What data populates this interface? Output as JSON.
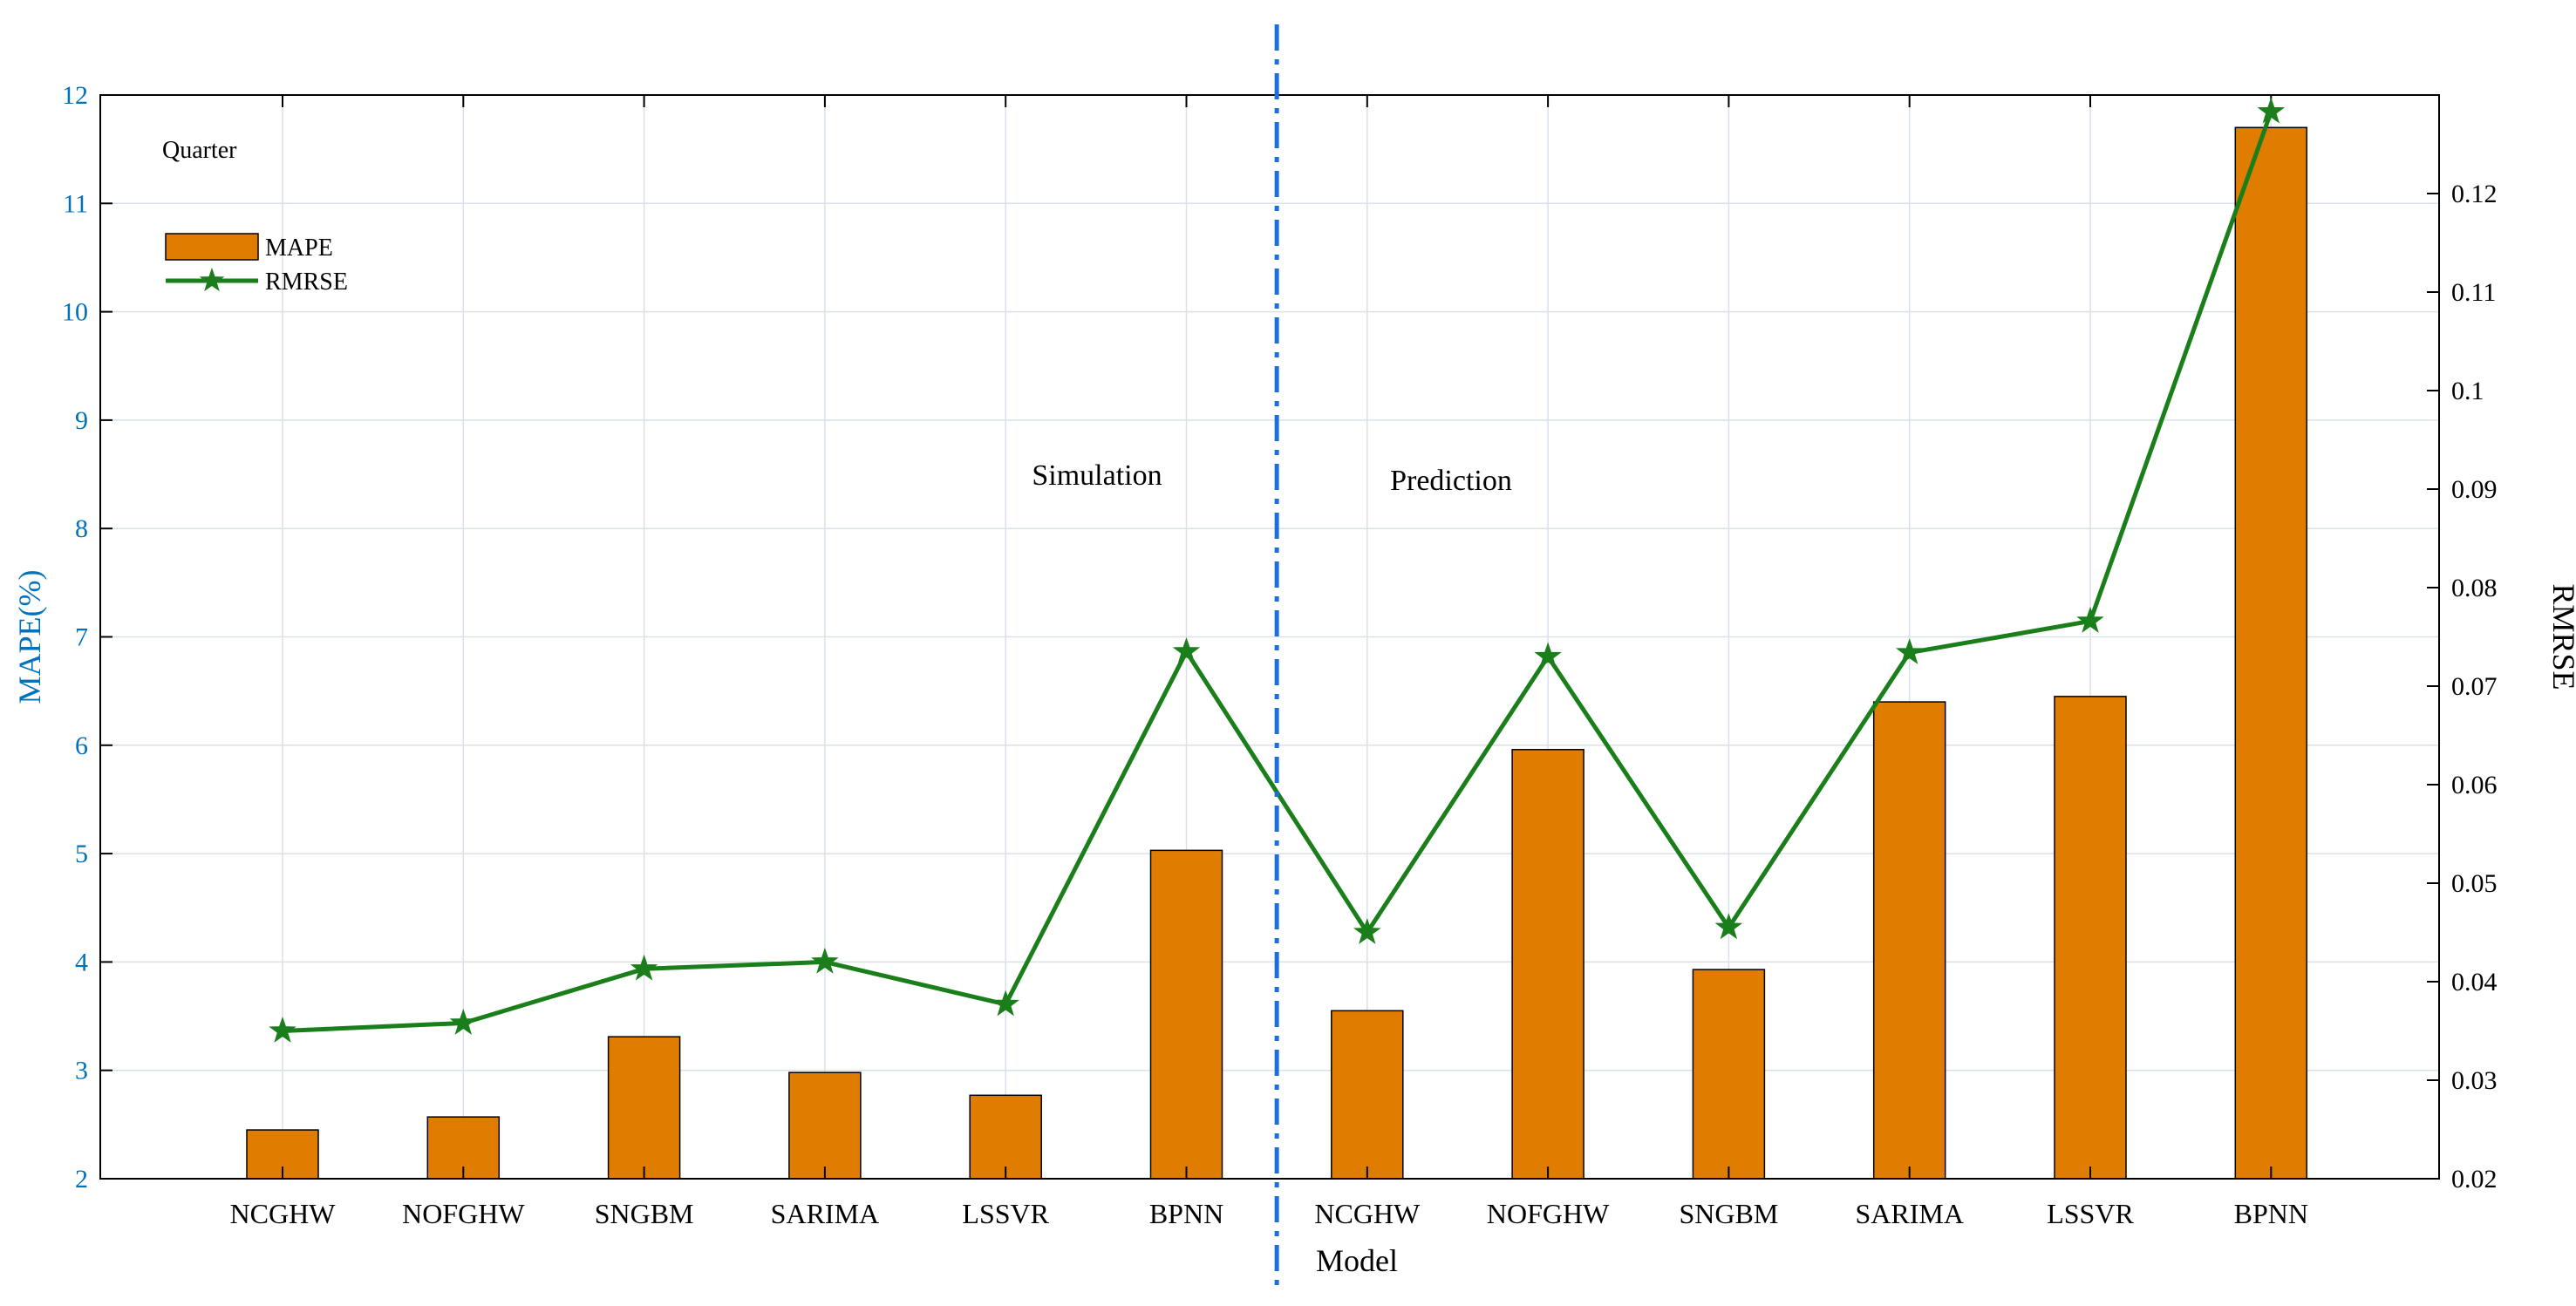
{
  "chart_data": {
    "type": "bar",
    "categories": [
      "NCGHW",
      "NOFGHW",
      "SNGBM",
      "SARIMA",
      "LSSVR",
      "BPNN",
      "NCGHW",
      "NOFGHW",
      "SNGBM",
      "SARIMA",
      "LSSVR",
      "BPNN"
    ],
    "series": [
      {
        "name": "MAPE",
        "kind": "bar",
        "axis": "left",
        "values": [
          2.45,
          2.57,
          3.31,
          2.98,
          2.77,
          5.03,
          3.55,
          5.96,
          3.93,
          6.4,
          6.45,
          11.7
        ]
      },
      {
        "name": "RMRSE",
        "kind": "line",
        "marker": "star",
        "axis": "right",
        "values": [
          0.035,
          0.0358,
          0.0413,
          0.042,
          0.0377,
          0.0735,
          0.045,
          0.073,
          0.0455,
          0.0734,
          0.0766,
          0.1283
        ]
      }
    ],
    "title": "",
    "xlabel": "Model",
    "ylabel_left": "MAPE(%)",
    "ylabel_right": "RMRSE",
    "ylim_left": [
      2,
      12
    ],
    "ylim_right": [
      0.02,
      0.13
    ],
    "yticks_left": [
      "2",
      "3",
      "4",
      "5",
      "6",
      "7",
      "8",
      "9",
      "10",
      "11",
      "12"
    ],
    "yticks_right": [
      "0.02",
      "0.03",
      "0.04",
      "0.05",
      "0.06",
      "0.07",
      "0.08",
      "0.09",
      "0.1",
      "0.11",
      "0.12"
    ],
    "yticks_right_values": [
      0.02,
      0.03,
      0.04,
      0.05,
      0.06,
      0.07,
      0.08,
      0.09,
      0.1,
      0.11,
      0.12
    ],
    "grid": true,
    "legend": {
      "position": "top-left",
      "title": "Quarter",
      "entries": [
        "MAPE",
        "RMRSE"
      ]
    },
    "annotations": {
      "left_region": "Simulation",
      "right_region": "Prediction"
    },
    "divider_after_category_index": 5,
    "colors": {
      "bar": "#E07C00",
      "line": "#1A7F1A",
      "left_axis": "#0072BD",
      "divider": "#1C6FD8",
      "grid": "#D9E1EA"
    }
  }
}
